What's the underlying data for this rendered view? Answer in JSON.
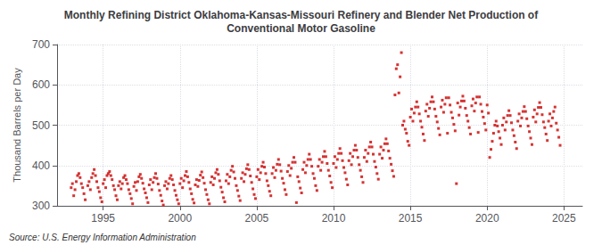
{
  "chart_data": {
    "type": "scatter",
    "title": "Monthly Refining District Oklahoma-Kansas-Missouri Refinery and Blender Net Production of\nConventional Motor Gasoline",
    "ylabel": "Thousand Barrels per Day",
    "annotations": [
      "Source: U.S. Energy Information Administration"
    ],
    "color": "#cc0000",
    "marker": "square",
    "grid": true,
    "xlim": [
      1992.0,
      2026.2
    ],
    "xticks": [
      1995,
      2000,
      2005,
      2010,
      2015,
      2020,
      2025
    ],
    "ylim": [
      300,
      700
    ],
    "yticks": [
      300,
      400,
      500,
      600,
      700
    ],
    "x": [
      1992.917,
      1993.0,
      1993.083,
      1993.167,
      1993.25,
      1993.333,
      1993.417,
      1993.5,
      1993.583,
      1993.667,
      1993.75,
      1993.833,
      1994.0,
      1994.083,
      1994.167,
      1994.25,
      1994.333,
      1994.417,
      1994.5,
      1994.583,
      1994.667,
      1994.75,
      1994.833,
      1994.917,
      1995.0,
      1995.083,
      1995.167,
      1995.25,
      1995.333,
      1995.417,
      1995.5,
      1995.583,
      1995.667,
      1995.75,
      1995.833,
      1995.917,
      1996.0,
      1996.083,
      1996.167,
      1996.25,
      1996.333,
      1996.417,
      1996.5,
      1996.583,
      1996.667,
      1996.75,
      1996.833,
      1996.917,
      1997.0,
      1997.083,
      1997.167,
      1997.25,
      1997.333,
      1997.417,
      1997.5,
      1997.583,
      1997.667,
      1997.75,
      1997.833,
      1997.917,
      1998.0,
      1998.083,
      1998.167,
      1998.25,
      1998.333,
      1998.417,
      1998.5,
      1998.583,
      1998.667,
      1998.75,
      1998.833,
      1998.917,
      1999.0,
      1999.083,
      1999.167,
      1999.25,
      1999.333,
      1999.417,
      1999.5,
      1999.583,
      1999.667,
      1999.75,
      1999.833,
      1999.917,
      2000.0,
      2000.083,
      2000.167,
      2000.25,
      2000.333,
      2000.417,
      2000.5,
      2000.583,
      2000.667,
      2000.75,
      2000.833,
      2000.917,
      2001.0,
      2001.083,
      2001.167,
      2001.25,
      2001.333,
      2001.417,
      2001.5,
      2001.583,
      2001.667,
      2001.75,
      2001.833,
      2001.917,
      2002.0,
      2002.083,
      2002.167,
      2002.25,
      2002.333,
      2002.417,
      2002.5,
      2002.583,
      2002.667,
      2002.75,
      2002.833,
      2002.917,
      2003.0,
      2003.083,
      2003.167,
      2003.25,
      2003.333,
      2003.417,
      2003.5,
      2003.583,
      2003.667,
      2003.75,
      2003.833,
      2003.917,
      2004.0,
      2004.083,
      2004.167,
      2004.25,
      2004.333,
      2004.417,
      2004.5,
      2004.583,
      2004.667,
      2004.75,
      2004.833,
      2004.917,
      2005.0,
      2005.083,
      2005.167,
      2005.25,
      2005.333,
      2005.417,
      2005.5,
      2005.583,
      2005.667,
      2005.75,
      2005.833,
      2005.917,
      2006.0,
      2006.083,
      2006.167,
      2006.25,
      2006.333,
      2006.417,
      2006.5,
      2006.583,
      2006.667,
      2006.75,
      2006.833,
      2006.917,
      2007.0,
      2007.083,
      2007.167,
      2007.25,
      2007.333,
      2007.417,
      2007.5,
      2007.583,
      2007.667,
      2007.75,
      2007.833,
      2007.917,
      2008.0,
      2008.083,
      2008.167,
      2008.25,
      2008.333,
      2008.417,
      2008.5,
      2008.583,
      2008.667,
      2008.75,
      2008.833,
      2008.917,
      2009.0,
      2009.083,
      2009.167,
      2009.25,
      2009.333,
      2009.417,
      2009.5,
      2009.583,
      2009.667,
      2009.75,
      2009.833,
      2009.917,
      2010.0,
      2010.083,
      2010.167,
      2010.25,
      2010.333,
      2010.417,
      2010.5,
      2010.583,
      2010.667,
      2010.75,
      2010.833,
      2010.917,
      2011.0,
      2011.083,
      2011.167,
      2011.25,
      2011.333,
      2011.417,
      2011.5,
      2011.583,
      2011.667,
      2011.75,
      2011.833,
      2011.917,
      2012.0,
      2012.083,
      2012.167,
      2012.25,
      2012.333,
      2012.417,
      2012.5,
      2012.583,
      2012.667,
      2012.75,
      2012.833,
      2012.917,
      2013.0,
      2013.083,
      2013.167,
      2013.25,
      2013.333,
      2013.417,
      2013.5,
      2013.583,
      2013.667,
      2013.75,
      2013.833,
      2013.917,
      2014.0,
      2014.083,
      2014.167,
      2014.25,
      2014.333,
      2014.417,
      2014.5,
      2014.583,
      2014.667,
      2014.75,
      2014.833,
      2014.917,
      2015.0,
      2015.083,
      2015.167,
      2015.25,
      2015.333,
      2015.417,
      2015.5,
      2015.583,
      2015.667,
      2015.75,
      2015.833,
      2015.917,
      2016.0,
      2016.083,
      2016.167,
      2016.25,
      2016.333,
      2016.417,
      2016.5,
      2016.583,
      2016.667,
      2016.75,
      2016.833,
      2016.917,
      2017.0,
      2017.083,
      2017.167,
      2017.25,
      2017.333,
      2017.417,
      2017.5,
      2017.583,
      2017.667,
      2017.75,
      2017.833,
      2017.917,
      2018.0,
      2018.083,
      2018.167,
      2018.25,
      2018.333,
      2018.417,
      2018.5,
      2018.583,
      2018.667,
      2018.75,
      2018.833,
      2018.917,
      2019.0,
      2019.083,
      2019.167,
      2019.25,
      2019.333,
      2019.417,
      2019.5,
      2019.583,
      2019.667,
      2019.75,
      2019.833,
      2019.917,
      2020.0,
      2020.083,
      2020.167,
      2020.25,
      2020.333,
      2020.417,
      2020.5,
      2020.583,
      2020.667,
      2020.75,
      2020.833,
      2020.917,
      2021.0,
      2021.083,
      2021.167,
      2021.25,
      2021.333,
      2021.417,
      2021.5,
      2021.583,
      2021.667,
      2021.75,
      2021.833,
      2021.917,
      2022.0,
      2022.083,
      2022.167,
      2022.25,
      2022.333,
      2022.417,
      2022.5,
      2022.583,
      2022.667,
      2022.75,
      2022.833,
      2022.917,
      2023.0,
      2023.083,
      2023.167,
      2023.25,
      2023.333,
      2023.417,
      2023.5,
      2023.583,
      2023.667,
      2023.75,
      2023.833,
      2023.917,
      2024.0,
      2024.083,
      2024.167,
      2024.25,
      2024.333,
      2024.417,
      2024.5,
      2024.583,
      2024.667,
      2024.75
    ],
    "values": [
      345,
      355,
      325,
      340,
      360,
      375,
      380,
      370,
      355,
      345,
      330,
      315,
      350,
      360,
      340,
      370,
      380,
      390,
      375,
      360,
      345,
      335,
      320,
      310,
      355,
      365,
      345,
      375,
      380,
      385,
      375,
      365,
      350,
      340,
      325,
      315,
      350,
      360,
      342,
      355,
      370,
      375,
      365,
      355,
      340,
      330,
      318,
      305,
      348,
      358,
      338,
      360,
      372,
      378,
      368,
      356,
      342,
      332,
      320,
      308,
      352,
      365,
      340,
      358,
      370,
      380,
      368,
      354,
      338,
      326,
      312,
      302,
      350,
      360,
      342,
      355,
      368,
      375,
      365,
      352,
      338,
      326,
      315,
      305,
      355,
      368,
      345,
      362,
      375,
      385,
      372,
      358,
      342,
      330,
      316,
      307,
      352,
      365,
      348,
      363,
      376,
      384,
      370,
      356,
      340,
      328,
      315,
      305,
      358,
      372,
      352,
      368,
      382,
      390,
      378,
      362,
      346,
      334,
      320,
      310,
      362,
      378,
      355,
      372,
      388,
      398,
      384,
      368,
      350,
      338,
      324,
      313,
      368,
      382,
      360,
      378,
      392,
      402,
      390,
      374,
      358,
      342,
      328,
      318,
      372,
      390,
      365,
      382,
      398,
      408,
      396,
      380,
      362,
      350,
      336,
      325,
      380,
      395,
      370,
      388,
      403,
      415,
      402,
      386,
      368,
      356,
      340,
      328,
      385,
      400,
      375,
      393,
      408,
      420,
      408,
      308,
      372,
      360,
      344,
      332,
      390,
      408,
      382,
      400,
      415,
      428,
      415,
      398,
      380,
      368,
      350,
      338,
      398,
      415,
      388,
      408,
      422,
      435,
      422,
      405,
      388,
      374,
      358,
      345,
      405,
      422,
      395,
      415,
      430,
      442,
      430,
      412,
      395,
      382,
      366,
      352,
      412,
      430,
      402,
      422,
      438,
      450,
      438,
      420,
      402,
      388,
      372,
      358,
      420,
      438,
      410,
      430,
      446,
      458,
      446,
      428,
      410,
      396,
      380,
      366,
      428,
      446,
      418,
      438,
      454,
      466,
      454,
      436,
      418,
      403,
      387,
      373,
      575,
      640,
      650,
      580,
      620,
      680,
      500,
      510,
      490,
      480,
      460,
      450,
      520,
      540,
      510,
      530,
      545,
      558,
      545,
      528,
      510,
      495,
      478,
      462,
      535,
      552,
      522,
      542,
      558,
      570,
      558,
      540,
      522,
      508,
      492,
      476,
      545,
      562,
      532,
      552,
      568,
      480,
      568,
      550,
      532,
      518,
      502,
      486,
      355,
      555,
      525,
      545,
      560,
      572,
      560,
      542,
      524,
      510,
      494,
      478,
      548,
      565,
      535,
      555,
      570,
      482,
      570,
      552,
      534,
      520,
      504,
      488,
      550,
      530,
      420,
      440,
      460,
      480,
      500,
      510,
      498,
      484,
      468,
      452,
      500,
      518,
      488,
      508,
      524,
      536,
      524,
      506,
      488,
      474,
      458,
      442,
      510,
      528,
      498,
      518,
      534,
      546,
      534,
      516,
      498,
      484,
      468,
      452,
      520,
      538,
      508,
      528,
      544,
      556,
      544,
      526,
      508,
      494,
      478,
      462,
      510,
      528,
      498,
      518,
      534,
      545,
      505,
      488,
      470,
      450
    ]
  }
}
